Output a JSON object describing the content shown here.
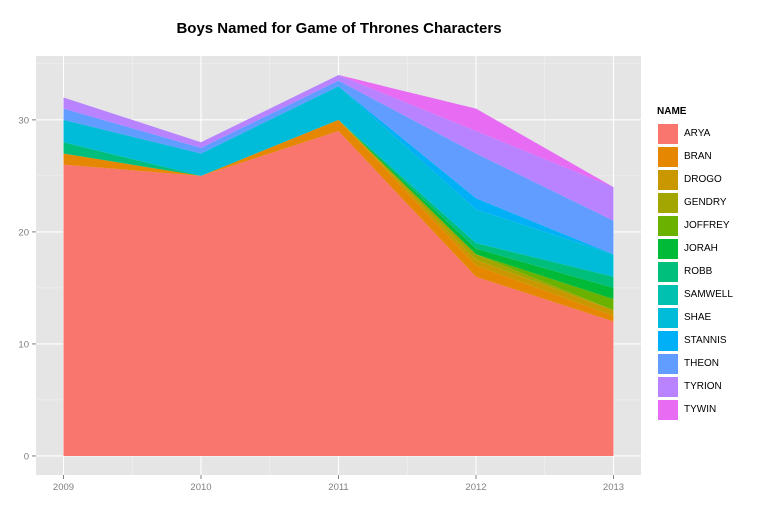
{
  "chart_data": {
    "type": "area",
    "stacked": true,
    "title": "Boys Named for Game of Thrones Characters",
    "xlabel": "",
    "ylabel": "",
    "x": [
      2009,
      2010,
      2011,
      2012,
      2013
    ],
    "x_ticks": [
      "2009",
      "2010",
      "2011",
      "2012",
      "2013"
    ],
    "y_ticks": [
      0,
      10,
      20,
      30
    ],
    "ylim": [
      -1.7,
      35.7
    ],
    "legend_title": "NAME",
    "legend_position": "right",
    "series": [
      {
        "name": "ARYA",
        "color": "#F8766D",
        "values": [
          26,
          25,
          29,
          16,
          12
        ]
      },
      {
        "name": "BRAN",
        "color": "#E58700",
        "values": [
          1,
          0,
          1,
          1,
          0.5
        ]
      },
      {
        "name": "DROGO",
        "color": "#C99800",
        "values": [
          0,
          0,
          0,
          0.5,
          0.5
        ]
      },
      {
        "name": "GENDRY",
        "color": "#A3A500",
        "values": [
          0,
          0,
          0,
          0.5,
          0
        ]
      },
      {
        "name": "JOFFREY",
        "color": "#6BB100",
        "values": [
          0,
          0,
          0,
          0,
          1
        ]
      },
      {
        "name": "JORAH",
        "color": "#00BA38",
        "values": [
          0,
          0,
          0,
          0.5,
          1
        ]
      },
      {
        "name": "ROBB",
        "color": "#00BF7D",
        "values": [
          1,
          0,
          0,
          0.5,
          1
        ]
      },
      {
        "name": "SAMWELL",
        "color": "#00C0AF",
        "values": [
          0,
          0,
          0,
          0,
          0
        ]
      },
      {
        "name": "SHAE",
        "color": "#00BCD8",
        "values": [
          2,
          2,
          3,
          3,
          2
        ]
      },
      {
        "name": "STANNIS",
        "color": "#00B0F6",
        "values": [
          0,
          0,
          0,
          1,
          0
        ]
      },
      {
        "name": "THEON",
        "color": "#619CFF",
        "values": [
          1,
          0.5,
          0.5,
          4,
          3
        ]
      },
      {
        "name": "TYRION",
        "color": "#B983FF",
        "values": [
          1,
          0.5,
          0.5,
          2,
          3
        ]
      },
      {
        "name": "TYWIN",
        "color": "#E76BF3",
        "values": [
          0,
          0,
          0,
          2,
          0
        ]
      }
    ]
  }
}
